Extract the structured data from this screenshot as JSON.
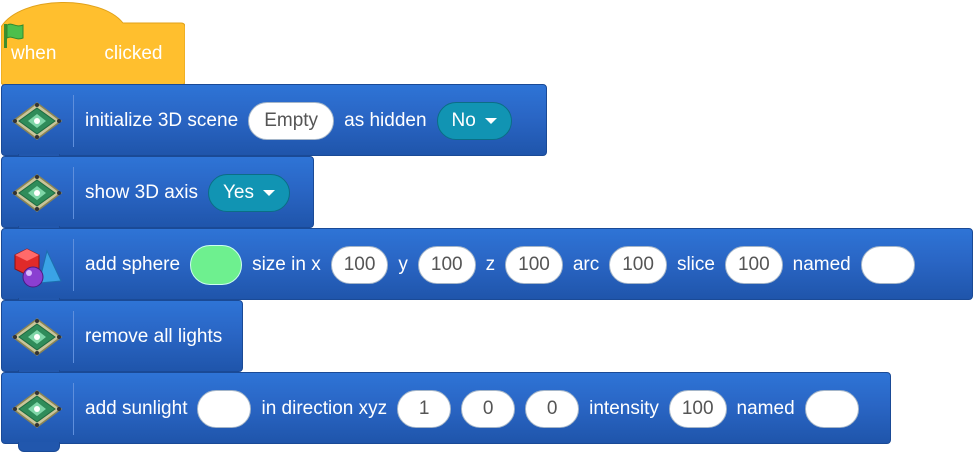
{
  "hat": {
    "when": "when",
    "clicked": "clicked",
    "icon": "green-flag-icon",
    "color": "#ffbf2e"
  },
  "blocks": {
    "init": {
      "label": "initialize 3D scene",
      "scene_value": "Empty",
      "hidden_label": "as hidden",
      "hidden_value": "No"
    },
    "axis": {
      "label": "show 3D axis",
      "value": "Yes"
    },
    "sphere": {
      "label": "add sphere",
      "color": "#6ef08f",
      "size_label": "size in x",
      "x": "100",
      "y_label": "y",
      "y": "100",
      "z_label": "z",
      "z": "100",
      "arc_label": "arc",
      "arc": "100",
      "slice_label": "slice",
      "slice": "100",
      "named_label": "named",
      "name": ""
    },
    "lights": {
      "label": "remove all lights"
    },
    "sunlight": {
      "label": "add sunlight",
      "color": "",
      "dir_label": "in direction xyz",
      "dx": "1",
      "dy": "0",
      "dz": "0",
      "intensity_label": "intensity",
      "intensity": "100",
      "named_label": "named",
      "name": ""
    }
  },
  "colors": {
    "block": "#2a66c5",
    "dropdown": "#1194b3"
  }
}
